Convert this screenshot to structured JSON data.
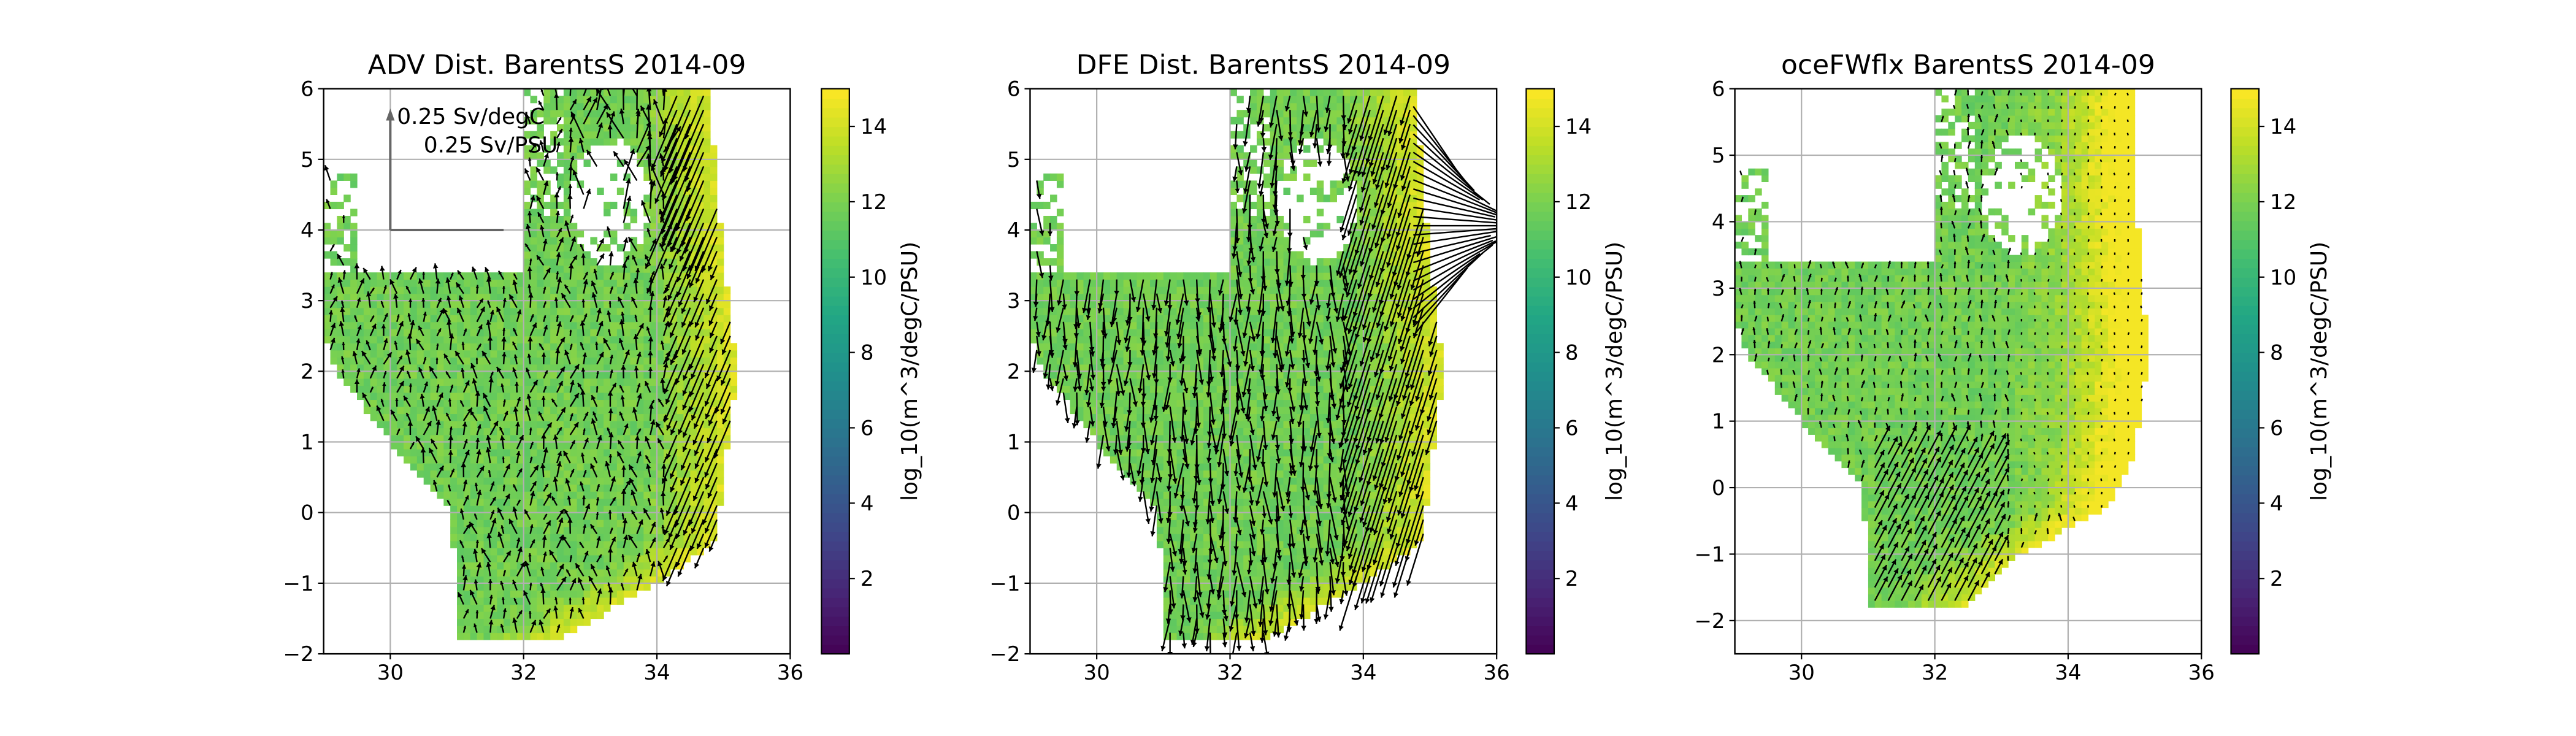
{
  "chart_data": [
    {
      "type": "heatmap",
      "subtype": "heatmap-with-quiver",
      "title": "ADV Dist. BarentsS 2014-09",
      "xlabel": "",
      "ylabel": "",
      "xlim": [
        29,
        36
      ],
      "ylim": [
        -2,
        6
      ],
      "x_ticks": [
        "30",
        "32",
        "34",
        "36"
      ],
      "y_ticks": [
        "−2",
        "−1",
        "0",
        "1",
        "2",
        "3",
        "4",
        "5",
        "6"
      ],
      "grid": true,
      "colorbar": {
        "label": "log_10(m^3/degC/PSU)",
        "range": [
          0,
          15
        ],
        "ticks": [
          "2",
          "4",
          "6",
          "8",
          "10",
          "12",
          "14"
        ],
        "colormap": "viridis"
      },
      "quiver_key": {
        "x_label": "0.25 Sv/degC",
        "y_label": "0.25 Sv/PSU",
        "origin": [
          30,
          4
        ]
      }
    },
    {
      "type": "heatmap",
      "subtype": "heatmap-with-quiver",
      "title": "DFE Dist. BarentsS 2014-09",
      "xlabel": "",
      "ylabel": "",
      "xlim": [
        29,
        36
      ],
      "ylim": [
        -2,
        6
      ],
      "x_ticks": [
        "30",
        "32",
        "34",
        "36"
      ],
      "y_ticks": [
        "−2",
        "−1",
        "0",
        "1",
        "2",
        "3",
        "4",
        "5",
        "6"
      ],
      "grid": true,
      "colorbar": {
        "label": "log_10(m^3/degC/PSU)",
        "range": [
          0,
          15
        ],
        "ticks": [
          "2",
          "4",
          "6",
          "8",
          "10",
          "12",
          "14"
        ],
        "colormap": "viridis"
      }
    },
    {
      "type": "heatmap",
      "subtype": "heatmap-with-quiver",
      "title": "oceFWflx BarentsS 2014-09",
      "xlabel": "",
      "ylabel": "",
      "xlim": [
        29,
        36
      ],
      "ylim": [
        -2.5,
        6
      ],
      "x_ticks": [
        "30",
        "32",
        "34",
        "36"
      ],
      "y_ticks": [
        "−2",
        "−1",
        "0",
        "1",
        "2",
        "3",
        "4",
        "5",
        "6"
      ],
      "grid": true,
      "colorbar": {
        "label": "log_10(m^3/degC/PSU)",
        "range": [
          0,
          15
        ],
        "ticks": [
          "2",
          "4",
          "6",
          "8",
          "10",
          "12",
          "14"
        ],
        "colormap": "viridis"
      }
    }
  ]
}
